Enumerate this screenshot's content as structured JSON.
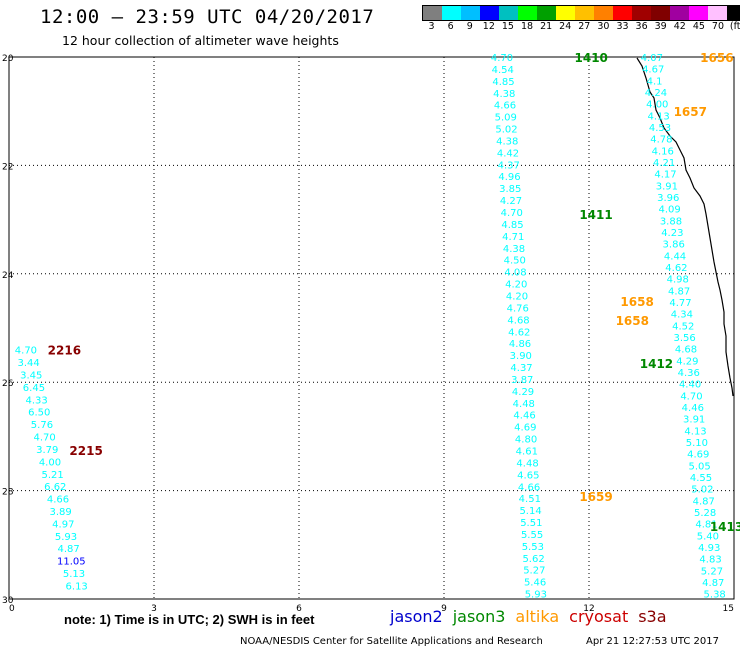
{
  "title": "12:00 – 23:59 UTC 04/20/2017",
  "subtitle": "12 hour collection of altimeter wave heights",
  "legend": {
    "colors": [
      "#7f7f7f",
      "#00ffff",
      "#00bfff",
      "#0000ff",
      "#00c0c0",
      "#00ff00",
      "#00a000",
      "#ffff00",
      "#ffc000",
      "#ff8000",
      "#ff0000",
      "#a00000",
      "#800000",
      "#a000a0",
      "#ff00ff",
      "#ffc0ff",
      "#000000"
    ],
    "labels": [
      "3",
      "6",
      "9",
      "12",
      "15",
      "18",
      "21",
      "24",
      "27",
      "30",
      "33",
      "36",
      "39",
      "42",
      "45",
      "70",
      "(ft)"
    ]
  },
  "axes": {
    "x_ticks": [
      "0",
      "3",
      "6",
      "9",
      "12",
      "15"
    ],
    "y_ticks": [
      "20",
      "22",
      "24",
      "26",
      "28",
      "30"
    ]
  },
  "note": "note: 1) Time is in UTC; 2) SWH is in feet",
  "satellites": [
    {
      "name": "jason2",
      "color": "#0000cc"
    },
    {
      "name": "jason3",
      "color": "#008800"
    },
    {
      "name": "altika",
      "color": "#ff9900"
    },
    {
      "name": "cryosat",
      "color": "#cc0000"
    },
    {
      "name": "s3a",
      "color": "#880000"
    }
  ],
  "footer": {
    "credit": "NOAA/NESDIS Center for Satellite Applications and Research",
    "timestamp": "Apr 21 12:27:53 UTC 2017"
  },
  "tracks": [
    {
      "id": "t1410",
      "label": "1410",
      "label_color": "#008800",
      "label_pos": [
        11.7,
        20.0
      ],
      "values": [
        "4.70",
        "4.54",
        "4.85",
        "4.38",
        "4.66",
        "5.09",
        "5.02",
        "4.38",
        "4.42",
        "4.37",
        "4.96",
        "3.85",
        "4.27",
        "4.70",
        "4.85",
        "4.71",
        "4.38",
        "4.50",
        "4.08",
        "4.20",
        "4.20",
        "4.76",
        "4.68",
        "4.62",
        "4.86",
        "3.90",
        "4.37",
        "3.87",
        "4.29",
        "4.48",
        "4.46",
        "4.69",
        "4.80",
        "4.61",
        "4.48",
        "4.65",
        "4.66",
        "4.51",
        "5.14",
        "5.51",
        "5.55",
        "5.53",
        "5.62",
        "5.27",
        "5.46",
        "5.93"
      ],
      "start": [
        10.2,
        20.0
      ],
      "end": [
        10.9,
        29.9
      ]
    },
    {
      "id": "t1656",
      "label": "1656",
      "label_color": "#ff9900",
      "label_pos": [
        14.3,
        20.0
      ],
      "values": [
        "4.07",
        "4.67",
        "4.1",
        "4.24",
        "4.00",
        "4.13",
        "4.53",
        "4.78",
        "4.16",
        "4.21",
        "4.17",
        "3.91",
        "3.96",
        "4.09",
        "3.88",
        "4.23",
        "3.86",
        "4.44",
        "4.62",
        "4.98",
        "4.87",
        "4.77",
        "4.34",
        "4.52",
        "3.56",
        "4.68",
        "4.29",
        "4.36",
        "4.40",
        "4.70",
        "4.46",
        "3.91",
        "4.13",
        "5.10",
        "4.69",
        "5.05",
        "4.55",
        "5.02",
        "4.87",
        "5.28",
        "4.81",
        "5.40",
        "4.93",
        "4.83",
        "5.27",
        "4.87",
        "5.38"
      ],
      "start": [
        13.3,
        20.0
      ],
      "end": [
        14.6,
        29.9
      ]
    },
    {
      "id": "t2216",
      "label": "2216",
      "label_color": "#880000",
      "label_pos": [
        0.8,
        25.4
      ],
      "values": [
        "4.70",
        "3.44",
        "3.45",
        "6.45",
        "4.33",
        "6.50",
        "5.76",
        "4.70",
        "3.79",
        "4.00",
        "5.21",
        "6.62",
        "4.66",
        "3.89",
        "4.97",
        "5.93",
        "4.87",
        "11.05",
        "5.13",
        "6.13"
      ],
      "start": [
        0.35,
        25.4
      ],
      "end": [
        1.4,
        29.75
      ]
    }
  ],
  "labels": [
    {
      "text": "1657",
      "color": "#ff9900",
      "pos": [
        13.75,
        21.0
      ]
    },
    {
      "text": "1411",
      "color": "#008800",
      "pos": [
        11.8,
        22.9
      ]
    },
    {
      "text": "1658",
      "color": "#ff9900",
      "pos": [
        12.65,
        24.5
      ]
    },
    {
      "text": "1658",
      "color": "#ff9900",
      "pos": [
        12.55,
        24.85
      ]
    },
    {
      "text": "1412",
      "color": "#008800",
      "pos": [
        13.05,
        25.65
      ]
    },
    {
      "text": "2215",
      "color": "#880000",
      "pos": [
        1.25,
        27.25
      ]
    },
    {
      "text": "1659",
      "color": "#ff9900",
      "pos": [
        11.8,
        28.1
      ]
    },
    {
      "text": "1413",
      "color": "#008800",
      "pos": [
        14.5,
        28.65
      ]
    }
  ]
}
